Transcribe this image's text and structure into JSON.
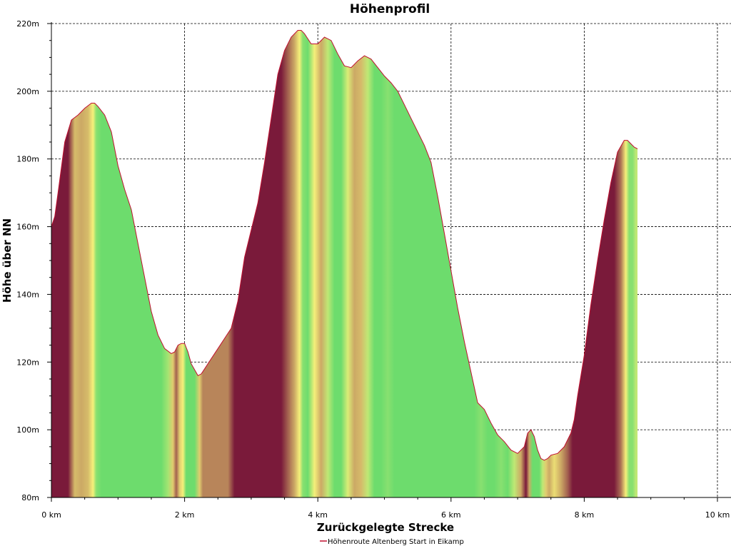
{
  "chart_data": {
    "type": "area",
    "title": "Höhenprofil",
    "xlabel": "Zurückgelegte Strecke",
    "ylabel": "Höhe über NN",
    "xlim": [
      0,
      10
    ],
    "ylim": [
      80,
      220
    ],
    "xticks": [
      0,
      2,
      4,
      6,
      8,
      10
    ],
    "xtick_labels": [
      "0 km",
      "2 km",
      "4 km",
      "6 km",
      "8 km",
      "10 km"
    ],
    "yticks": [
      80,
      100,
      120,
      140,
      160,
      180,
      200,
      220
    ],
    "ytick_labels": [
      "80m",
      "100m",
      "120m",
      "140m",
      "160m",
      "180m",
      "200m",
      "220m"
    ],
    "grid": true,
    "legend_position": "bottom-center",
    "colors": {
      "ascent": "#7a1a3a",
      "flat": "#f5f07a",
      "descent": "#6ddc6d",
      "line": "#c01030"
    },
    "series": [
      {
        "name": "Höhenroute Altenberg Start in Eikamp",
        "x": [
          0.0,
          0.05,
          0.1,
          0.2,
          0.3,
          0.4,
          0.5,
          0.6,
          0.65,
          0.7,
          0.8,
          0.9,
          1.0,
          1.1,
          1.2,
          1.3,
          1.4,
          1.5,
          1.6,
          1.7,
          1.8,
          1.85,
          1.9,
          1.95,
          2.0,
          2.05,
          2.1,
          2.2,
          2.25,
          2.3,
          2.4,
          2.5,
          2.6,
          2.7,
          2.8,
          2.9,
          3.0,
          3.1,
          3.2,
          3.3,
          3.4,
          3.5,
          3.6,
          3.7,
          3.75,
          3.8,
          3.9,
          4.0,
          4.1,
          4.2,
          4.3,
          4.4,
          4.5,
          4.6,
          4.7,
          4.8,
          4.9,
          5.0,
          5.1,
          5.2,
          5.3,
          5.4,
          5.5,
          5.6,
          5.7,
          5.8,
          5.9,
          6.0,
          6.1,
          6.2,
          6.3,
          6.4,
          6.5,
          6.6,
          6.7,
          6.8,
          6.9,
          7.0,
          7.1,
          7.15,
          7.2,
          7.25,
          7.3,
          7.35,
          7.4,
          7.45,
          7.5,
          7.6,
          7.7,
          7.8,
          7.85,
          7.9,
          8.0,
          8.1,
          8.2,
          8.3,
          8.4,
          8.5,
          8.6,
          8.65,
          8.7,
          8.75,
          8.8
        ],
        "y": [
          160,
          163,
          170,
          185,
          191.5,
          193,
          195,
          196.5,
          196.5,
          195.5,
          193,
          188,
          178,
          171,
          165,
          155,
          145,
          135,
          128,
          124,
          122.5,
          123,
          125,
          125.5,
          125.5,
          123,
          119.5,
          116,
          116.5,
          118,
          121,
          124,
          127,
          130,
          138,
          151,
          159,
          167,
          179,
          192,
          205,
          212,
          216,
          218,
          218,
          217,
          214,
          214,
          216,
          215,
          211,
          207.5,
          207,
          209,
          210.5,
          209.5,
          207,
          204.5,
          202.5,
          200,
          196,
          192,
          188,
          184,
          179,
          169,
          158,
          147,
          136,
          126,
          117,
          108,
          106,
          102,
          98.5,
          96.5,
          94,
          93,
          95,
          99,
          100,
          98,
          94,
          91.5,
          91,
          91.5,
          92.5,
          93,
          95,
          99,
          103,
          110,
          122,
          137,
          150,
          162,
          173,
          182,
          185.5,
          185.5,
          184.5,
          183.5,
          183
        ]
      }
    ]
  }
}
